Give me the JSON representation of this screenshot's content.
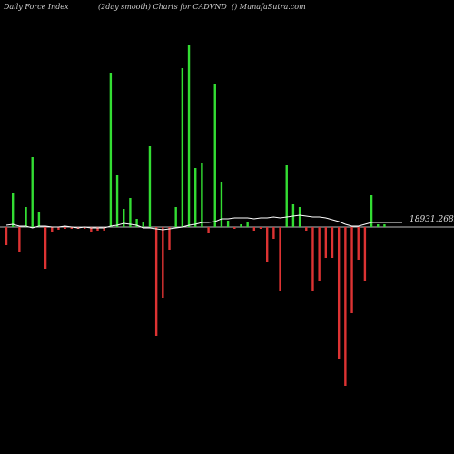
{
  "header": {
    "left": "Daily Force  Index",
    "center": "(2day smooth) Charts for CADVND",
    "right": "() MunafaSutra.com"
  },
  "colors": {
    "background": "#000000",
    "positive": "#33dd33",
    "negative": "#dd3333",
    "zero_line": "#bbbbbb",
    "smooth_line": "#ffffff"
  },
  "chart_data": {
    "type": "bar",
    "title": "(2day smooth) Charts for CADVND",
    "last_value_label": "18931.26850",
    "ylim": [
      -175,
      200
    ],
    "values": [
      -20,
      37,
      -27,
      22,
      77,
      17,
      -46,
      -6,
      -3,
      -2,
      -2,
      -2,
      -2,
      -6,
      -4,
      -4,
      170,
      57,
      20,
      32,
      9,
      5,
      89,
      -120,
      -78,
      -25,
      22,
      175,
      200,
      65,
      70,
      -7,
      158,
      50,
      7,
      -2,
      3,
      6,
      -4,
      -2,
      -38,
      -13,
      -70,
      68,
      25,
      22,
      -4,
      -70,
      -60,
      -34,
      -34,
      -145,
      -175,
      -95,
      -36,
      -59,
      35,
      3,
      3
    ],
    "smooth": [
      2,
      3,
      1,
      1,
      -1,
      1,
      1,
      0,
      0,
      1,
      0,
      -1,
      0,
      -1,
      -1,
      -1,
      1,
      2,
      4,
      3,
      2,
      -1,
      -1,
      -2,
      -3,
      -2,
      -1,
      0,
      2,
      3,
      5,
      5,
      6,
      9,
      9,
      10,
      10,
      10,
      9,
      10,
      10,
      11,
      10,
      11,
      12,
      13,
      12,
      11,
      11,
      10,
      8,
      6,
      3,
      1,
      1,
      3,
      5,
      5,
      5
    ]
  }
}
